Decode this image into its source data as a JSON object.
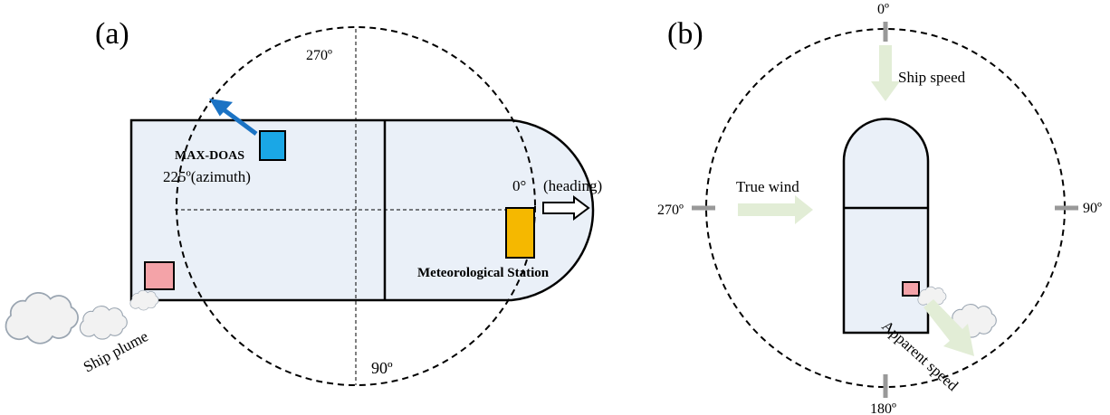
{
  "panel_a": {
    "label": "(a)",
    "angle_top": "270º",
    "instrument": "MAX-DOAS",
    "azimuth": "225º(azimuth)",
    "heading_angle": "0°",
    "heading": "(heading)",
    "station": "Meteorological Station",
    "angle_bottom": "90º",
    "plume": "Ship plume"
  },
  "panel_b": {
    "label": "(b)",
    "angle_top": "0º",
    "ship_speed": "Ship speed",
    "true_wind": "True wind",
    "angle_left": "270º",
    "angle_right": "90º",
    "apparent_speed": "Apparent speed",
    "angle_bottom": "180º"
  }
}
